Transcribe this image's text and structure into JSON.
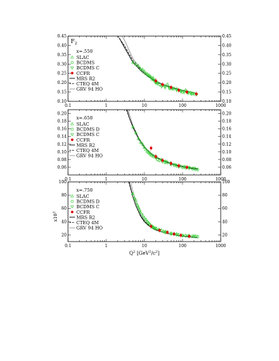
{
  "figure": {
    "panel_label": "F",
    "panel_label_sub": "2",
    "xlabel": "Q",
    "xlabel_sup": "2",
    "xlabel_units": " [GeV",
    "xlabel_units_sup": "2",
    "xlabel_units_end": "/c",
    "xlabel_units_end_sup": "2",
    "xlabel_close": "]",
    "y3_label": "x10",
    "y3_label_sup": "3"
  },
  "chart_data": [
    {
      "type": "scatter",
      "title": "x=.550",
      "xscale": "log",
      "xlim": [
        0.1,
        1000
      ],
      "ylim": [
        0.1,
        0.45
      ],
      "xticks": [
        "0.1",
        "1",
        "10",
        "100",
        "1000"
      ],
      "yticks": [
        "0.10",
        "0.15",
        "0.20",
        "0.25",
        "0.30",
        "0.35",
        "0.40",
        "0.45"
      ],
      "legend": [
        "SLAC",
        "BCDMS",
        "BCDMS C",
        "CCFR",
        "MRS R2",
        "CTEQ 4M",
        "GRV 94 HO"
      ],
      "curves": {
        "MRS": {
          "x": [
            2.2,
            3,
            5,
            8,
            12,
            20,
            30,
            50,
            80,
            130,
            200,
            250
          ],
          "y": [
            0.44,
            0.39,
            0.31,
            0.265,
            0.235,
            0.205,
            0.19,
            0.175,
            0.162,
            0.152,
            0.145,
            0.14
          ]
        },
        "CTEQ": {
          "x": [
            2.0,
            3,
            5,
            8,
            12,
            20,
            30,
            50,
            80,
            130,
            200,
            250
          ],
          "y": [
            0.45,
            0.4,
            0.32,
            0.27,
            0.238,
            0.207,
            0.191,
            0.176,
            0.163,
            0.153,
            0.146,
            0.141
          ]
        },
        "GRV": {
          "x": [
            2.6,
            3,
            5,
            8,
            12,
            20,
            30,
            50,
            80,
            130,
            200,
            250
          ],
          "y": [
            0.45,
            0.43,
            0.33,
            0.275,
            0.242,
            0.21,
            0.193,
            0.178,
            0.165,
            0.155,
            0.147,
            0.142
          ]
        }
      },
      "SLAC": {
        "x": [
          5,
          6,
          7,
          8,
          9,
          10,
          11,
          12,
          13,
          14,
          15,
          16,
          17,
          18,
          19,
          20,
          22
        ],
        "y": [
          0.31,
          0.3,
          0.29,
          0.275,
          0.27,
          0.26,
          0.25,
          0.245,
          0.24,
          0.235,
          0.23,
          0.22,
          0.225,
          0.215,
          0.21,
          0.205,
          0.2
        ]
      },
      "BCDMS": {
        "x": [
          20,
          25,
          30,
          35,
          40,
          45,
          50,
          60,
          70,
          80,
          90,
          100,
          120,
          140,
          160,
          180,
          200,
          230
        ],
        "y": [
          0.2,
          0.19,
          0.185,
          0.18,
          0.19,
          0.175,
          0.17,
          0.168,
          0.165,
          0.16,
          0.155,
          0.15,
          0.158,
          0.148,
          0.145,
          0.142,
          0.14,
          0.138
        ]
      },
      "BCDMS C": {
        "x": [
          22,
          28,
          35,
          45,
          55,
          70,
          90,
          110,
          140,
          170
        ],
        "y": [
          0.195,
          0.18,
          0.175,
          0.17,
          0.168,
          0.16,
          0.155,
          0.15,
          0.145,
          0.142
        ]
      },
      "CCFR": {
        "x": [
          20,
          30,
          50,
          80,
          130,
          230
        ],
        "y": [
          0.21,
          0.19,
          0.175,
          0.16,
          0.15,
          0.14
        ]
      }
    },
    {
      "type": "scatter",
      "title": "x=.650",
      "xscale": "log",
      "xlim": [
        0.1,
        1000
      ],
      "ylim": [
        0.04,
        0.21
      ],
      "xticks": [
        "0.1",
        "1",
        "10",
        "100",
        "1000"
      ],
      "yticks": [
        "0.06",
        "0.08",
        "0.10",
        "0.12",
        "0.14",
        "0.16",
        "0.18",
        "0.20"
      ],
      "legend": [
        "SLAC",
        "BCDMS D",
        "BCDMS C",
        "CCFR",
        "MRS R2",
        "CTEQ 4M",
        "GRV 94 HO"
      ],
      "curves": {
        "MRS": {
          "x": [
            3.5,
            4,
            5,
            7,
            10,
            15,
            20,
            30,
            50,
            80,
            130,
            200,
            250
          ],
          "y": [
            0.21,
            0.19,
            0.165,
            0.135,
            0.112,
            0.095,
            0.086,
            0.077,
            0.069,
            0.063,
            0.059,
            0.056,
            0.055
          ]
        },
        "CTEQ": {
          "x": [
            3.4,
            4,
            5,
            7,
            10,
            15,
            20,
            30,
            50,
            80,
            130,
            200,
            250
          ],
          "y": [
            0.21,
            0.19,
            0.166,
            0.136,
            0.113,
            0.096,
            0.087,
            0.078,
            0.07,
            0.064,
            0.06,
            0.057,
            0.056
          ]
        },
        "GRV": {
          "x": [
            3.8,
            4,
            5,
            7,
            10,
            15,
            20,
            30,
            50,
            80,
            130,
            200,
            250
          ],
          "y": [
            0.21,
            0.2,
            0.17,
            0.138,
            0.114,
            0.097,
            0.088,
            0.079,
            0.071,
            0.065,
            0.061,
            0.058,
            0.057
          ]
        }
      },
      "SLAC": {
        "x": [
          5,
          6,
          7,
          8,
          9,
          10,
          11,
          12,
          13,
          14,
          15
        ],
        "y": [
          0.165,
          0.15,
          0.135,
          0.125,
          0.12,
          0.112,
          0.106,
          0.101,
          0.098,
          0.096,
          0.092
        ]
      },
      "BCDMS D": {
        "x": [
          16,
          18,
          20,
          22,
          25,
          30,
          35,
          40,
          50,
          60,
          70,
          80,
          100,
          120,
          150,
          180,
          220,
          250
        ],
        "y": [
          0.09,
          0.088,
          0.086,
          0.08,
          0.078,
          0.075,
          0.073,
          0.072,
          0.068,
          0.066,
          0.064,
          0.062,
          0.06,
          0.059,
          0.058,
          0.056,
          0.055,
          0.054
        ]
      },
      "BCDMS C": {
        "x": [
          20,
          28,
          36,
          48,
          65,
          85,
          110,
          150,
          200
        ],
        "y": [
          0.087,
          0.079,
          0.075,
          0.07,
          0.066,
          0.063,
          0.061,
          0.059,
          0.057
        ]
      },
      "CCFR": {
        "x": [
          15,
          20,
          30,
          50,
          80,
          130
        ],
        "y": [
          0.11,
          0.088,
          0.078,
          0.07,
          0.064,
          0.06
        ]
      }
    },
    {
      "type": "scatter",
      "title": "x=.750",
      "xscale": "log",
      "xlim": [
        0.1,
        1000
      ],
      "ylim": [
        10,
        100
      ],
      "xticks": [
        "0.1",
        "1",
        "10",
        "100",
        "1000"
      ],
      "yticks": [
        "20",
        "40",
        "60",
        "80",
        "100"
      ],
      "legend": [
        "SLAC",
        "BCDMS D",
        "BCDMS C",
        "CCFR",
        "MRS R2",
        "CTEQ 4M",
        "GRV 94 HO"
      ],
      "curves": {
        "MRS": {
          "x": [
            4.0,
            4.5,
            5,
            6,
            8,
            10,
            13,
            18,
            25,
            35,
            50,
            80,
            130,
            200,
            250
          ],
          "y": [
            100,
            88,
            78,
            64,
            48,
            40,
            34,
            28.5,
            25.5,
            23,
            21,
            19,
            17.5,
            16.5,
            16
          ]
        },
        "CTEQ": {
          "x": [
            3.9,
            4.5,
            5,
            6,
            8,
            10,
            13,
            18,
            25,
            35,
            50,
            80,
            130,
            200,
            250
          ],
          "y": [
            100,
            87,
            78,
            64,
            49,
            41,
            35,
            29,
            26,
            23.5,
            21.5,
            19.5,
            18,
            17,
            16.5
          ]
        },
        "GRV": {
          "x": [
            4.4,
            5,
            6,
            8,
            10,
            13,
            18,
            25,
            35,
            50,
            80,
            130,
            200,
            250
          ],
          "y": [
            100,
            86,
            70,
            52,
            43,
            36,
            30,
            26,
            23,
            21,
            18.5,
            17,
            16,
            15.5
          ]
        }
      },
      "SLAC": {
        "x": [
          5,
          5.5,
          6,
          6.5,
          7,
          7.5,
          8,
          9,
          10,
          11,
          12,
          13,
          14,
          15,
          16,
          17,
          18,
          20
        ],
        "y": [
          82,
          76,
          72,
          66,
          62,
          58,
          54,
          50,
          46,
          43,
          40,
          38,
          36,
          34,
          33,
          32,
          31,
          30
        ]
      },
      "BCDMS D": {
        "x": [
          20,
          24,
          28,
          32,
          36,
          40,
          50,
          60,
          70,
          80,
          100,
          120,
          150,
          180,
          220,
          250
        ],
        "y": [
          30,
          28,
          27,
          25,
          24.5,
          24,
          22,
          21.5,
          21,
          20,
          19,
          19,
          18.5,
          18,
          18,
          17.5
        ]
      },
      "BCDMS C": {
        "x": [
          25,
          35,
          50,
          70,
          100,
          140,
          200
        ],
        "y": [
          27,
          24,
          22,
          20.5,
          19,
          18.5,
          18
        ]
      },
      "CCFR": {
        "x": [
          15,
          25,
          40,
          60,
          90,
          150
        ],
        "y": [
          33,
          27,
          24,
          21.5,
          19.5,
          18
        ]
      }
    }
  ]
}
